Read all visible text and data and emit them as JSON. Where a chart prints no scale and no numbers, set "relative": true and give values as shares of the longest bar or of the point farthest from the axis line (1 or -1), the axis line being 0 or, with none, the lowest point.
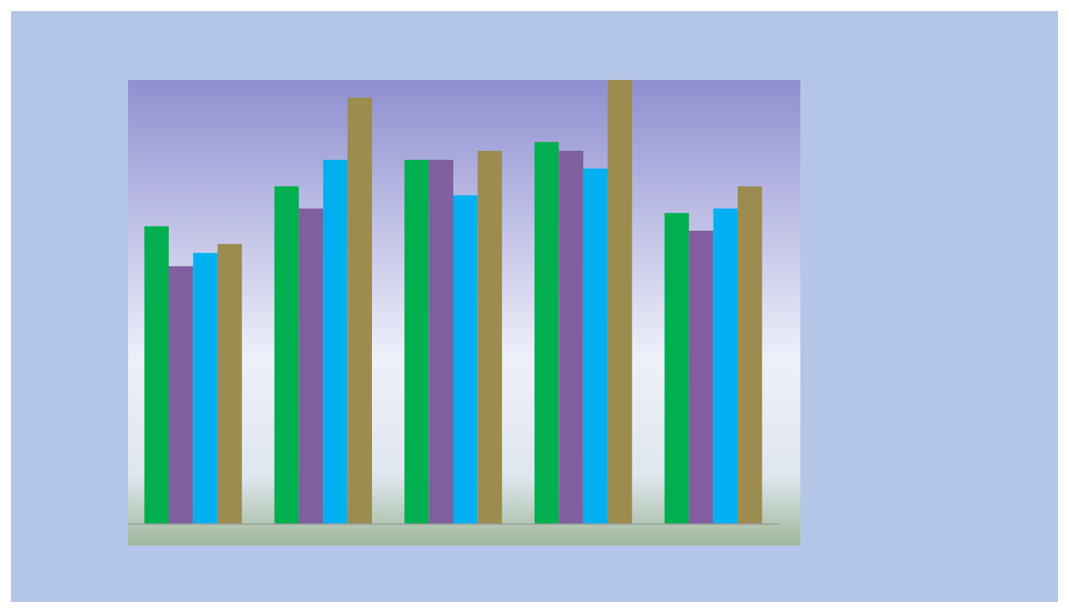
{
  "chart_data": {
    "type": "bar",
    "relative": true,
    "categories": [
      null,
      null,
      null,
      null,
      null
    ],
    "series": [
      {
        "color": "#00b050",
        "values": [
          0.67,
          0.76,
          0.82,
          0.86,
          0.7
        ]
      },
      {
        "color": "#7f5f9f",
        "values": [
          0.58,
          0.71,
          0.82,
          0.84,
          0.66
        ]
      },
      {
        "color": "#00b0f0",
        "values": [
          0.61,
          0.82,
          0.74,
          0.8,
          0.71
        ]
      },
      {
        "color": "#9c8c50",
        "values": [
          0.63,
          0.96,
          0.84,
          1,
          0.76
        ]
      }
    ],
    "stacked": false
  }
}
